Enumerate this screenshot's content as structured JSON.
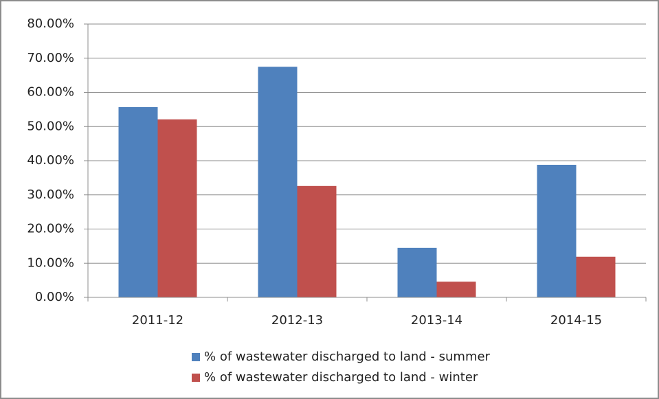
{
  "chart_data": {
    "type": "bar",
    "categories": [
      "2011-12",
      "2012-13",
      "2013-14",
      "2014-15"
    ],
    "series": [
      {
        "name": "% of wastewater discharged to land - summer",
        "color": "#4f81bd",
        "values": [
          55.7,
          67.5,
          14.5,
          38.8
        ]
      },
      {
        "name": "% of wastewater discharged to land - winter",
        "color": "#c0504d",
        "values": [
          52.1,
          32.6,
          4.6,
          11.9
        ]
      }
    ],
    "ylim": [
      0,
      80
    ],
    "yticks": [
      {
        "value": 0,
        "label": "0.00%"
      },
      {
        "value": 10,
        "label": "10.00%"
      },
      {
        "value": 20,
        "label": "20.00%"
      },
      {
        "value": 30,
        "label": "30.00%"
      },
      {
        "value": 40,
        "label": "40.00%"
      },
      {
        "value": 50,
        "label": "50.00%"
      },
      {
        "value": 60,
        "label": "60.00%"
      },
      {
        "value": 70,
        "label": "70.00%"
      },
      {
        "value": 80,
        "label": "80.00%"
      }
    ],
    "grid": true
  }
}
